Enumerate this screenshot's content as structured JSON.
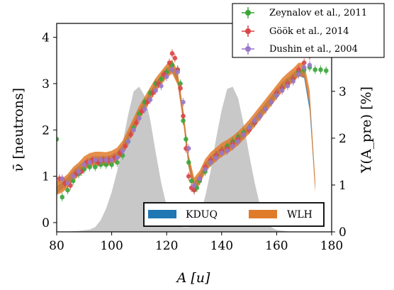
{
  "chart_data": {
    "type": "scatter",
    "xlabel": "A [u]",
    "ylabel_left": "ν̄ [neutrons]",
    "ylabel_right": "Y(A_pre) [%]",
    "xlim": [
      80,
      180
    ],
    "ylim_left": [
      -0.2,
      4.3
    ],
    "ylim_right": [
      0,
      4.45
    ],
    "xticks": [
      80,
      100,
      120,
      140,
      160,
      180
    ],
    "yticks_left": [
      0,
      1,
      2,
      3,
      4
    ],
    "yticks_right": [
      0,
      1,
      2,
      3,
      4
    ],
    "legend_top": {
      "placement": "top-right",
      "entries": [
        "Zeynalov et al., 2011",
        "Göök et al., 2014",
        "Dushin et al., 2004"
      ]
    },
    "legend_bottom": {
      "placement": "lower-right",
      "entries": [
        "KDUQ",
        "WLH"
      ]
    },
    "colors": {
      "zeynalov": "#3aa63a",
      "gook": "#d94646",
      "dushin": "#9a78c8",
      "kduq": "#1f77b4",
      "wlh": "#e07b2a",
      "yield": "#c8c8c8"
    },
    "series": [
      {
        "name": "Zeynalov et al., 2011",
        "x": [
          80,
          82,
          84,
          86,
          88,
          90,
          92,
          94,
          96,
          98,
          100,
          102,
          104,
          106,
          108,
          110,
          112,
          114,
          116,
          118,
          120,
          122,
          124,
          125,
          126,
          127,
          128,
          129,
          130,
          131,
          132,
          134,
          136,
          138,
          140,
          142,
          144,
          146,
          148,
          150,
          152,
          154,
          156,
          158,
          160,
          162,
          164,
          166,
          168,
          170,
          172,
          174,
          176,
          178
        ],
        "y": [
          1.8,
          0.55,
          0.7,
          0.9,
          1.05,
          1.15,
          1.2,
          1.2,
          1.25,
          1.25,
          1.25,
          1.3,
          1.45,
          1.75,
          2.05,
          2.35,
          2.6,
          2.8,
          3.0,
          3.1,
          3.25,
          3.4,
          3.3,
          3.0,
          2.2,
          1.8,
          1.3,
          0.9,
          0.7,
          0.75,
          0.9,
          1.1,
          1.3,
          1.45,
          1.55,
          1.65,
          1.75,
          1.85,
          1.95,
          2.05,
          2.15,
          2.3,
          2.45,
          2.6,
          2.75,
          2.9,
          3.0,
          3.1,
          3.25,
          3.3,
          3.35,
          3.3,
          3.3,
          3.28
        ]
      },
      {
        "name": "Göök et al., 2014",
        "x": [
          81,
          83,
          85,
          87,
          89,
          91,
          93,
          95,
          97,
          99,
          101,
          103,
          105,
          107,
          109,
          111,
          113,
          115,
          117,
          119,
          121,
          122,
          123,
          124,
          125,
          126,
          127,
          128,
          129,
          130,
          132,
          134,
          136,
          138,
          140,
          142,
          144,
          146,
          148,
          150,
          152,
          154,
          156,
          158,
          160,
          162,
          164,
          166,
          168,
          170,
          172
        ],
        "y": [
          0.95,
          0.85,
          0.8,
          1.05,
          1.1,
          1.3,
          1.35,
          1.3,
          1.35,
          1.35,
          1.4,
          1.5,
          1.65,
          1.9,
          2.15,
          2.4,
          2.6,
          2.8,
          3.0,
          3.2,
          3.45,
          3.65,
          3.55,
          3.3,
          2.9,
          2.3,
          1.6,
          1.0,
          0.75,
          0.7,
          0.95,
          1.2,
          1.35,
          1.45,
          1.55,
          1.6,
          1.7,
          1.8,
          1.9,
          2.0,
          2.15,
          2.3,
          2.45,
          2.6,
          2.8,
          2.9,
          3.0,
          3.1,
          3.3,
          3.45,
          3.6
        ]
      },
      {
        "name": "Dushin et al., 2004",
        "x": [
          82,
          84,
          86,
          88,
          90,
          92,
          94,
          96,
          98,
          100,
          102,
          104,
          106,
          108,
          110,
          112,
          114,
          116,
          118,
          120,
          122,
          124,
          126,
          128,
          130,
          132,
          134,
          136,
          138,
          140,
          142,
          144,
          146,
          148,
          150,
          152,
          154,
          156,
          158,
          160,
          162,
          164,
          166,
          168,
          170,
          172
        ],
        "y": [
          0.95,
          0.85,
          1.0,
          1.1,
          1.25,
          1.3,
          1.35,
          1.35,
          1.35,
          1.35,
          1.4,
          1.55,
          1.75,
          2.0,
          2.25,
          2.45,
          2.65,
          2.85,
          2.95,
          3.15,
          3.3,
          3.25,
          2.6,
          1.6,
          0.8,
          0.95,
          1.15,
          1.3,
          1.4,
          1.5,
          1.55,
          1.65,
          1.75,
          1.9,
          2.05,
          2.2,
          2.3,
          2.45,
          2.6,
          2.75,
          2.85,
          2.95,
          3.05,
          3.2,
          3.35,
          3.4
        ]
      },
      {
        "name": "KDUQ",
        "x": [
          80,
          82,
          84,
          86,
          88,
          90,
          92,
          94,
          96,
          98,
          100,
          102,
          104,
          106,
          108,
          110,
          112,
          114,
          116,
          118,
          120,
          122,
          124,
          126,
          128,
          130,
          132,
          134,
          136,
          138,
          140,
          142,
          144,
          146,
          148,
          150,
          152,
          154,
          156,
          158,
          160,
          162,
          164,
          166,
          168,
          170,
          172,
          174
        ],
        "y": [
          0.7,
          0.8,
          0.9,
          1.05,
          1.15,
          1.25,
          1.32,
          1.35,
          1.35,
          1.35,
          1.38,
          1.45,
          1.6,
          1.85,
          2.1,
          2.35,
          2.55,
          2.75,
          2.95,
          3.1,
          3.25,
          3.35,
          3.1,
          2.3,
          1.3,
          0.8,
          0.95,
          1.2,
          1.35,
          1.45,
          1.55,
          1.62,
          1.7,
          1.8,
          1.92,
          2.05,
          2.2,
          2.35,
          2.5,
          2.65,
          2.8,
          2.95,
          3.05,
          3.15,
          3.25,
          3.2,
          2.5,
          0.8
        ],
        "band": 0.08
      },
      {
        "name": "WLH",
        "x": [
          80,
          82,
          84,
          86,
          88,
          90,
          92,
          94,
          96,
          98,
          100,
          102,
          104,
          106,
          108,
          110,
          112,
          114,
          116,
          118,
          120,
          122,
          124,
          126,
          128,
          130,
          132,
          134,
          136,
          138,
          140,
          142,
          144,
          146,
          148,
          150,
          152,
          154,
          156,
          158,
          160,
          162,
          164,
          166,
          168,
          170,
          172,
          174
        ],
        "y": [
          0.75,
          0.8,
          0.9,
          1.05,
          1.15,
          1.28,
          1.35,
          1.38,
          1.38,
          1.37,
          1.4,
          1.47,
          1.62,
          1.87,
          2.12,
          2.37,
          2.57,
          2.77,
          2.97,
          3.12,
          3.27,
          3.37,
          3.12,
          2.32,
          1.32,
          0.82,
          0.97,
          1.22,
          1.37,
          1.47,
          1.57,
          1.64,
          1.72,
          1.82,
          1.94,
          2.07,
          2.22,
          2.37,
          2.52,
          2.67,
          2.82,
          2.97,
          3.08,
          3.18,
          3.3,
          3.3,
          2.7,
          0.8
        ],
        "band": 0.15
      },
      {
        "name": "Y(A_pre)",
        "axis": "right",
        "x": [
          80,
          84,
          88,
          92,
          94,
          96,
          98,
          100,
          102,
          104,
          106,
          108,
          110,
          112,
          114,
          116,
          118,
          120,
          122,
          124,
          126,
          128,
          130,
          132,
          134,
          136,
          138,
          140,
          142,
          144,
          146,
          148,
          150,
          152,
          154,
          156,
          158,
          160,
          164,
          168
        ],
        "y": [
          0,
          0.005,
          0.02,
          0.05,
          0.1,
          0.25,
          0.5,
          0.85,
          1.3,
          1.9,
          2.5,
          3.0,
          3.1,
          2.9,
          2.4,
          1.7,
          1.05,
          0.55,
          0.3,
          0.15,
          0.1,
          0.1,
          0.15,
          0.35,
          0.75,
          1.3,
          2.0,
          2.6,
          3.05,
          3.1,
          2.85,
          2.3,
          1.65,
          1.05,
          0.55,
          0.25,
          0.1,
          0.04,
          0.01,
          0
        ]
      }
    ]
  }
}
